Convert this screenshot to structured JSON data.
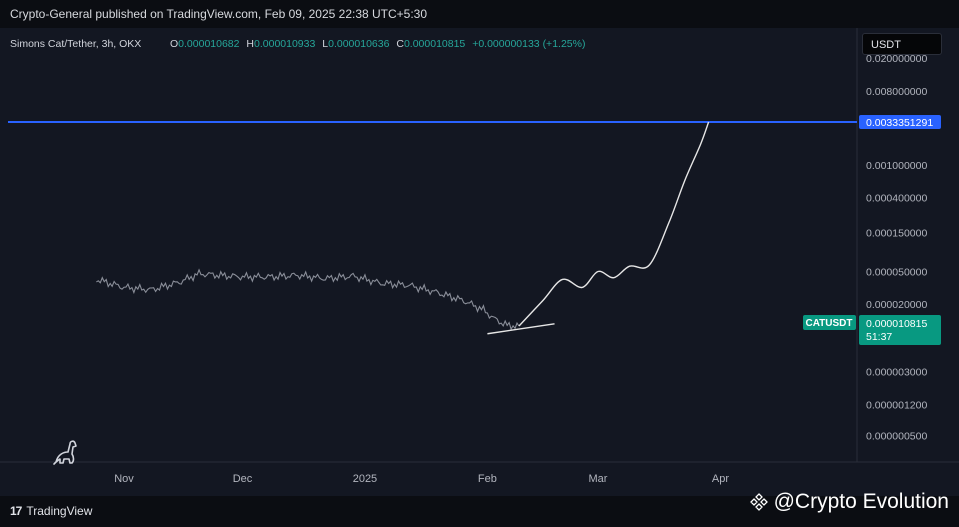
{
  "header": {
    "publisher_line": "Crypto-General published on TradingView.com, Feb 09, 2025 22:38 UTC+5:30"
  },
  "legend": {
    "symbol": "Simons Cat/Tether, 3h, OKX",
    "o_label": "O",
    "o_value": "0.000010682",
    "h_label": "H",
    "h_value": "0.000010933",
    "l_label": "L",
    "l_value": "0.000010636",
    "c_label": "C",
    "c_value": "0.000010815",
    "change": "+0.000000133 (+1.25%)"
  },
  "currency_button": "USDT",
  "footer": {
    "brand": "TradingView",
    "watermark": "@Crypto Evolution"
  },
  "colors": {
    "background": "#131722",
    "price_line": "#8a8e99",
    "projection": "#e6e6e6",
    "target_line": "#2962ff",
    "target_label_bg": "#2962ff",
    "current_label_bg": "#089981",
    "legend_value": "#26a69a",
    "axis_text": "#b2b5be"
  },
  "chart_data": {
    "type": "line",
    "title": "",
    "xlabel": "",
    "ylabel": "",
    "y_scale": "log",
    "grid": false,
    "x_tick_labels": [
      "Nov",
      "Dec",
      "2025",
      "Feb",
      "Mar",
      "Apr"
    ],
    "y_tick_labels": [
      "0.020000000",
      "0.008000000",
      "0.001000000",
      "0.000400000",
      "0.000150000",
      "0.000050000",
      "0.000020000",
      "0.000003000",
      "0.000001200",
      "0.000000500"
    ],
    "series": [
      {
        "role": "price",
        "x": [
          "2024-10-25",
          "2024-11-01",
          "2024-11-08",
          "2024-11-15",
          "2024-11-20",
          "2024-11-25",
          "2024-12-01",
          "2024-12-08",
          "2024-12-15",
          "2024-12-22",
          "2024-12-29",
          "2025-01-05",
          "2025-01-12",
          "2025-01-19",
          "2025-01-26",
          "2025-01-31",
          "2025-02-03",
          "2025-02-06",
          "2025-02-09"
        ],
        "values": [
          4e-05,
          3.2e-05,
          3e-05,
          3.7e-05,
          4.7e-05,
          4.5e-05,
          4.3e-05,
          4.3e-05,
          4.5e-05,
          4.1e-05,
          4.4e-05,
          3.6e-05,
          3.4e-05,
          2.8e-05,
          2.2e-05,
          1.7e-05,
          1.3e-05,
          1.1e-05,
          1.0815e-05
        ]
      },
      {
        "role": "projection",
        "x": [
          "2025-02-09",
          "2025-02-15",
          "2025-02-20",
          "2025-02-25",
          "2025-03-01",
          "2025-03-05",
          "2025-03-09",
          "2025-03-14",
          "2025-03-19",
          "2025-03-23",
          "2025-03-27",
          "2025-03-29"
        ],
        "values": [
          1.0815e-05,
          2.2e-05,
          4e-05,
          3.2e-05,
          5e-05,
          4.2e-05,
          5.8e-05,
          6e-05,
          0.0002,
          0.00065,
          0.0018,
          0.0033351291
        ]
      },
      {
        "role": "support-trendline",
        "x": [
          "2025-02-01",
          "2025-02-18"
        ],
        "values": [
          8.7e-06,
          1.15e-05
        ]
      }
    ],
    "horizontal_line": {
      "value": 0.0033351291,
      "label": "0.0033351291"
    },
    "current_price": {
      "label": "CATUSDT",
      "value": "0.000010815",
      "countdown": "51:37"
    }
  }
}
